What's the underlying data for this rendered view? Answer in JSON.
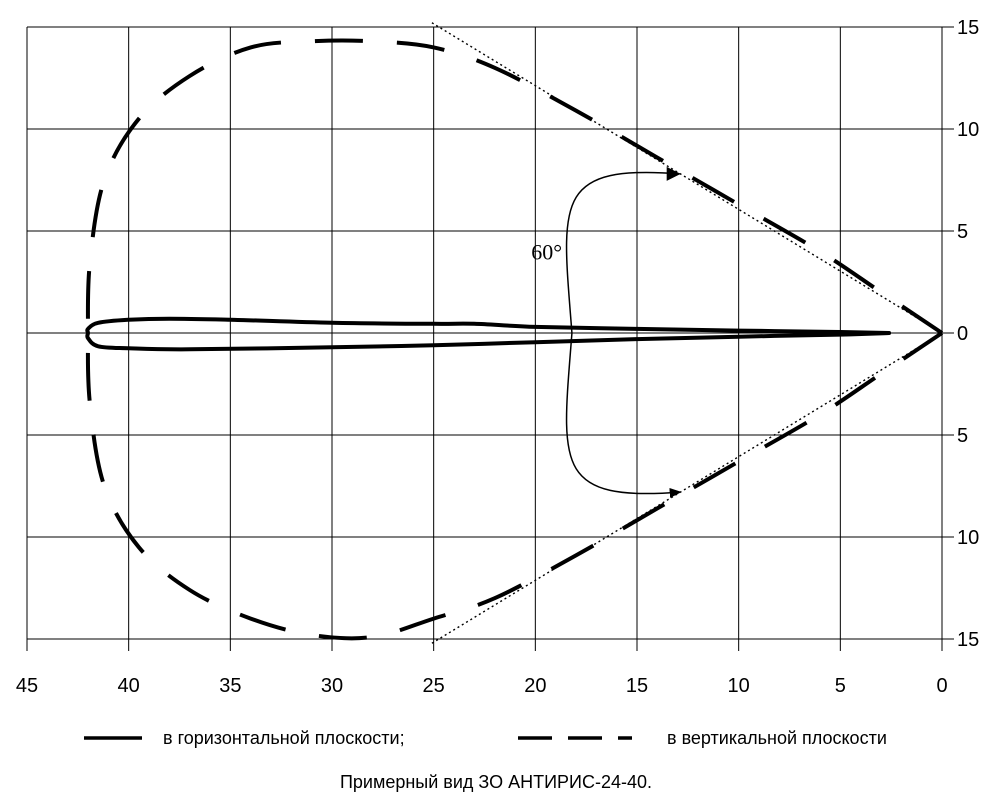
{
  "chart_data": {
    "type": "line",
    "title": "Примерный вид ЗО АНТИРИС-24-40.",
    "x_axis": {
      "ticks": [
        45,
        40,
        35,
        30,
        25,
        20,
        15,
        10,
        5,
        0
      ],
      "range": [
        45,
        0
      ]
    },
    "y_axis": {
      "ticks": [
        15,
        10,
        5,
        0,
        5,
        10,
        15
      ],
      "range": [
        -15,
        15
      ]
    },
    "grid": true,
    "angle_annotation": "60°",
    "series": [
      {
        "name": "в горизонтальной плоскости;",
        "style": "solid",
        "points": [
          [
            2.6,
            0.0
          ],
          [
            5,
            0.05
          ],
          [
            10,
            0.12
          ],
          [
            15,
            0.2
          ],
          [
            20,
            0.3
          ],
          [
            23,
            0.45
          ],
          [
            25,
            0.45
          ],
          [
            30,
            0.5
          ],
          [
            35,
            0.65
          ],
          [
            38,
            0.7
          ],
          [
            40,
            0.65
          ],
          [
            41.5,
            0.5
          ],
          [
            42,
            0.2
          ],
          [
            42,
            0.0
          ],
          [
            42,
            -0.25
          ],
          [
            41.5,
            -0.65
          ],
          [
            40,
            -0.75
          ],
          [
            37,
            -0.8
          ],
          [
            30,
            -0.7
          ],
          [
            25,
            -0.6
          ],
          [
            20,
            -0.45
          ],
          [
            15,
            -0.3
          ],
          [
            10,
            -0.18
          ],
          [
            5,
            -0.08
          ],
          [
            2.6,
            0.0
          ]
        ]
      },
      {
        "name": "в вертикальной плоскости",
        "style": "dashed",
        "points": [
          [
            0,
            0
          ],
          [
            3,
            2.0
          ],
          [
            6,
            4.0
          ],
          [
            10,
            6.3
          ],
          [
            14,
            8.6
          ],
          [
            18,
            10.9
          ],
          [
            22,
            13.0
          ],
          [
            25,
            14.0
          ],
          [
            28,
            14.3
          ],
          [
            31,
            14.3
          ],
          [
            34,
            14.0
          ],
          [
            37,
            12.6
          ],
          [
            39.5,
            10.5
          ],
          [
            41.2,
            7.5
          ],
          [
            41.9,
            3.5
          ],
          [
            42,
            0
          ],
          [
            41.9,
            -3.5
          ],
          [
            41.2,
            -7.5
          ],
          [
            39.5,
            -10.5
          ],
          [
            37,
            -12.6
          ],
          [
            34,
            -14.0
          ],
          [
            31,
            -14.8
          ],
          [
            28,
            -14.9
          ],
          [
            25,
            -14.0
          ],
          [
            22,
            -13.0
          ],
          [
            18,
            -10.9
          ],
          [
            14,
            -8.6
          ],
          [
            10,
            -6.3
          ],
          [
            6,
            -4.0
          ],
          [
            3,
            -2.0
          ],
          [
            0,
            0
          ]
        ]
      }
    ]
  },
  "legend": {
    "horizontal_label": "в горизонтальной плоскости;",
    "vertical_label": "в вертикальной плоскости"
  },
  "caption": "Примерный вид ЗО АНТИРИС-24-40."
}
